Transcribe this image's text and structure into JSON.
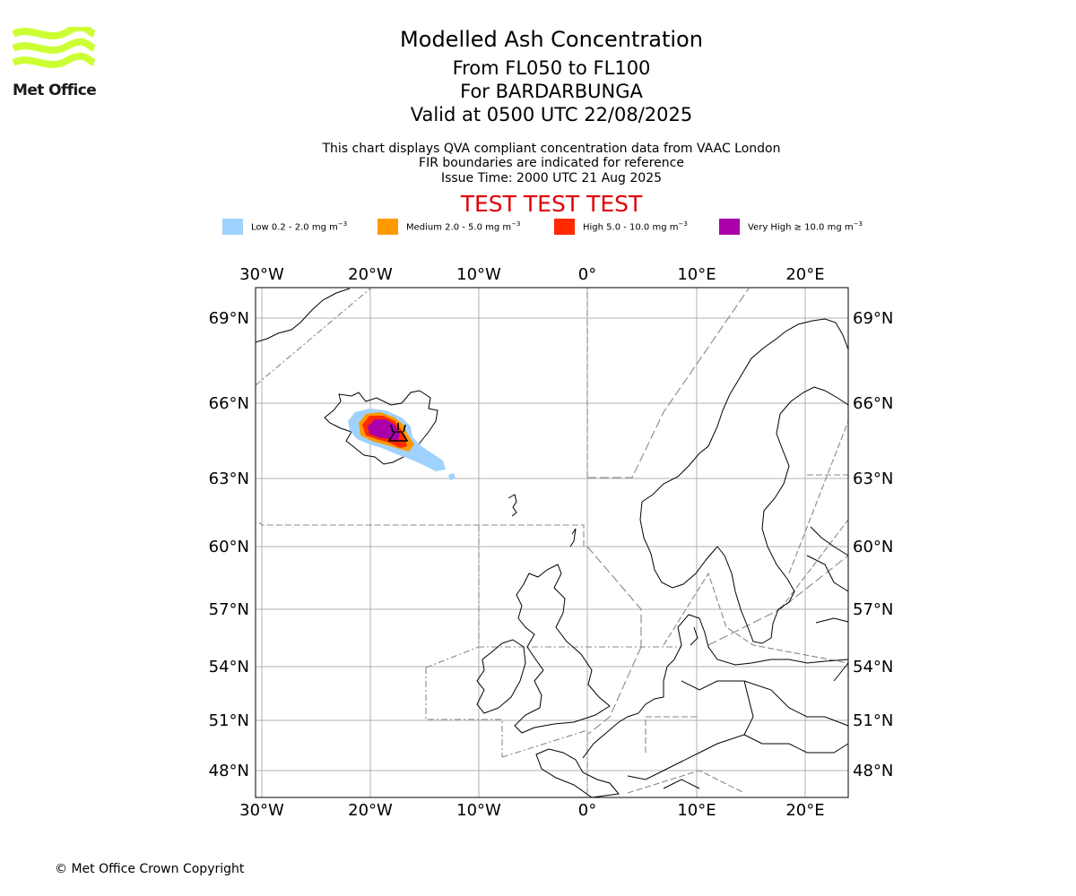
{
  "logo": {
    "text": "Met Office",
    "color": "#ccff33"
  },
  "header": {
    "title": "Modelled Ash Concentration",
    "level_range": "From FL050 to FL100",
    "volcano": "For BARDARBUNGA",
    "valid_time": "Valid at 0500 UTC 22/08/2025"
  },
  "notes": {
    "line1": "This chart displays QVA compliant concentration data from VAAC London",
    "line2": "FIR boundaries are indicated for reference",
    "line3": "Issue Time: 2000 UTC 21 Aug 2025"
  },
  "test_banner": "TEST TEST TEST",
  "legend": [
    {
      "label": "Low 0.2 - 2.0 mg m",
      "color": "#a0d2ff"
    },
    {
      "label": "Medium 2.0 - 5.0 mg m",
      "color": "#ff9900"
    },
    {
      "label": "High 5.0 - 10.0 mg m",
      "color": "#ff2a00"
    },
    {
      "label": "Very High ≥ 10.0 mg m",
      "color": "#aa00aa"
    }
  ],
  "legend_unit_exponent": "−3",
  "map": {
    "lon_labels": [
      "30°W",
      "20°W",
      "10°W",
      "0°",
      "10°E",
      "20°E"
    ],
    "lat_labels": [
      "69°N",
      "66°N",
      "63°N",
      "60°N",
      "57°N",
      "54°N",
      "51°N",
      "48°N"
    ]
  },
  "footer": {
    "copyright": "© Met Office Crown Copyright"
  }
}
